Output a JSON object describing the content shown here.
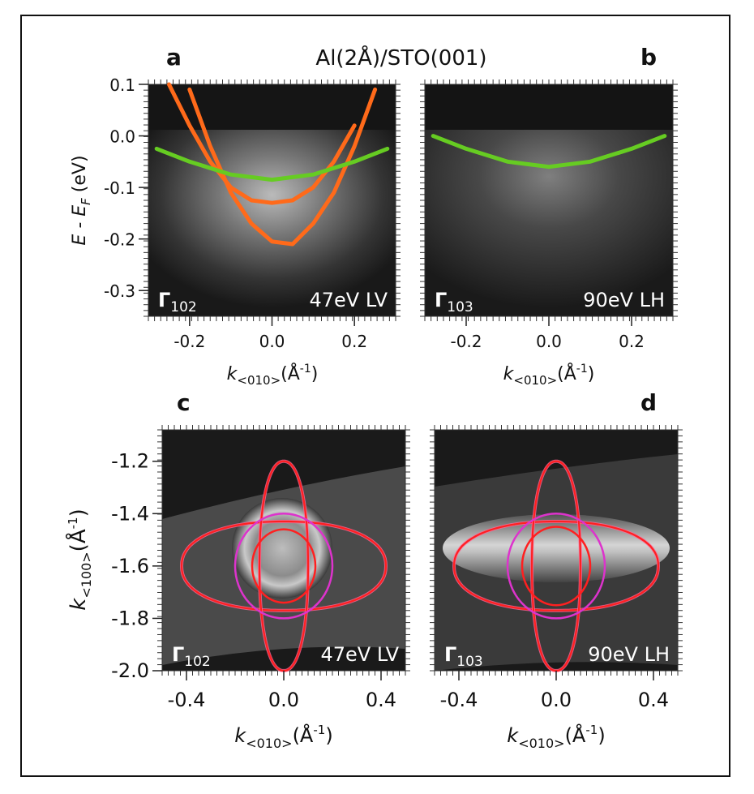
{
  "figure": {
    "main_title": "Al(2Å)/STO(001)",
    "panel_letters": [
      "a",
      "b",
      "c",
      "d"
    ]
  },
  "colors": {
    "orange_band": "#ff6a1a",
    "green_band": "#66cc22",
    "red_contour": "#ff2020",
    "magenta_contour": "#dd33cc",
    "pink_contour": "#ff6699"
  },
  "labels": {
    "ylabel_energy": "E - E_F (eV)",
    "ylabel_energy_main": "E - E",
    "ylabel_energy_sub": "F",
    "ylabel_energy_unit": " (eV)",
    "ylabel_k100_main": "k",
    "ylabel_k100_sub": "<100>",
    "ylabel_k100_unit": "(Å",
    "ylabel_k100_exp": "-1",
    "ylabel_k100_close": ")",
    "xlabel_main": "k",
    "xlabel_sub": "<010>",
    "xlabel_unit": "(Å",
    "xlabel_exp": "-1",
    "xlabel_close": ")"
  },
  "chart_data": [
    {
      "panel": "a",
      "type": "line",
      "title": "",
      "point_label": "Γ",
      "point_sub": "102",
      "condition": "47eV LV",
      "xlabel": "k<010>(Å-1)",
      "ylabel": "E - EF (eV)",
      "xlim": [
        -0.3,
        0.3
      ],
      "ylim": [
        -0.35,
        0.1
      ],
      "xticks": [
        -0.2,
        0.0,
        0.2
      ],
      "xtick_labels": [
        "-0.2",
        "0.0",
        "0.2"
      ],
      "yticks": [
        0.1,
        0.0,
        -0.1,
        -0.2,
        -0.3
      ],
      "ytick_labels": [
        "0.1",
        "0.0",
        "-0.1",
        "-0.2",
        "-0.3"
      ],
      "series": [
        {
          "name": "orange outer band",
          "color": "orange",
          "x": [
            -0.25,
            -0.2,
            -0.15,
            -0.1,
            -0.05,
            0.0,
            0.05,
            0.1,
            0.15,
            0.2
          ],
          "y": [
            0.1,
            0.02,
            -0.05,
            -0.1,
            -0.125,
            -0.13,
            -0.125,
            -0.1,
            -0.05,
            0.02
          ]
        },
        {
          "name": "orange inner band",
          "color": "orange",
          "x": [
            -0.2,
            -0.15,
            -0.1,
            -0.05,
            0.0,
            0.05,
            0.1,
            0.15,
            0.2,
            0.25
          ],
          "y": [
            0.09,
            -0.02,
            -0.11,
            -0.17,
            -0.205,
            -0.21,
            -0.17,
            -0.11,
            -0.02,
            0.09
          ]
        },
        {
          "name": "green band",
          "color": "green",
          "x": [
            -0.28,
            -0.2,
            -0.1,
            0.0,
            0.1,
            0.2,
            0.28
          ],
          "y": [
            -0.025,
            -0.05,
            -0.075,
            -0.085,
            -0.075,
            -0.05,
            -0.025
          ]
        }
      ]
    },
    {
      "panel": "b",
      "type": "line",
      "title": "",
      "point_label": "Γ",
      "point_sub": "103",
      "condition": "90eV LH",
      "xlabel": "k<010>(Å-1)",
      "ylabel": "",
      "xlim": [
        -0.3,
        0.3
      ],
      "ylim": [
        -0.35,
        0.1
      ],
      "xticks": [
        -0.2,
        0.0,
        0.2
      ],
      "xtick_labels": [
        "-0.2",
        "0.0",
        "0.2"
      ],
      "series": [
        {
          "name": "green band",
          "color": "green",
          "x": [
            -0.28,
            -0.2,
            -0.1,
            0.0,
            0.1,
            0.2,
            0.28
          ],
          "y": [
            0.0,
            -0.025,
            -0.05,
            -0.06,
            -0.05,
            -0.025,
            0.0
          ]
        }
      ]
    },
    {
      "panel": "c",
      "type": "line",
      "title": "",
      "point_label": "Γ",
      "point_sub": "102",
      "condition": "47eV LV",
      "xlabel": "k<010>(Å-1)",
      "ylabel": "k<100>(Å-1)",
      "xlim": [
        -0.5,
        0.5
      ],
      "ylim": [
        -2.0,
        -1.08
      ],
      "xticks": [
        -0.4,
        0.0,
        0.4
      ],
      "xtick_labels": [
        "-0.4",
        "0.0",
        "0.4"
      ],
      "yticks": [
        -1.2,
        -1.4,
        -1.6,
        -1.8,
        -2.0
      ],
      "ytick_labels": [
        "-1.2",
        "-1.4",
        "-1.6",
        "-1.8",
        "-2.0"
      ],
      "contours": [
        {
          "name": "dxz/dyz star",
          "color": "red",
          "center": [
            0.0,
            -1.6
          ],
          "half_width_x": 0.42,
          "half_width_y": 0.4
        },
        {
          "name": "dxy circle",
          "color": "red",
          "center": [
            0.0,
            -1.6
          ],
          "radius_x": 0.13,
          "radius_y": 0.14
        },
        {
          "name": "outer dxy circle",
          "color": "magenta",
          "center": [
            0.0,
            -1.6
          ],
          "radius_x": 0.2,
          "radius_y": 0.2
        }
      ]
    },
    {
      "panel": "d",
      "type": "line",
      "title": "",
      "point_label": "Γ",
      "point_sub": "103",
      "condition": "90eV LH",
      "xlabel": "k<010>(Å-1)",
      "ylabel": "",
      "xlim": [
        -0.5,
        0.5
      ],
      "ylim": [
        -2.0,
        -1.08
      ],
      "xticks": [
        -0.4,
        0.0,
        0.4
      ],
      "xtick_labels": [
        "-0.4",
        "0.0",
        "0.4"
      ],
      "contours": [
        {
          "name": "dxz/dyz star",
          "color": "red",
          "center": [
            0.0,
            -1.6
          ],
          "half_width_x": 0.42,
          "half_width_y": 0.4
        },
        {
          "name": "dxy circle",
          "color": "red",
          "center": [
            0.0,
            -1.6
          ],
          "radius_x": 0.14,
          "radius_y": 0.15
        },
        {
          "name": "outer dxy circle",
          "color": "magenta",
          "center": [
            0.0,
            -1.6
          ],
          "radius_x": 0.2,
          "radius_y": 0.2
        }
      ]
    }
  ]
}
